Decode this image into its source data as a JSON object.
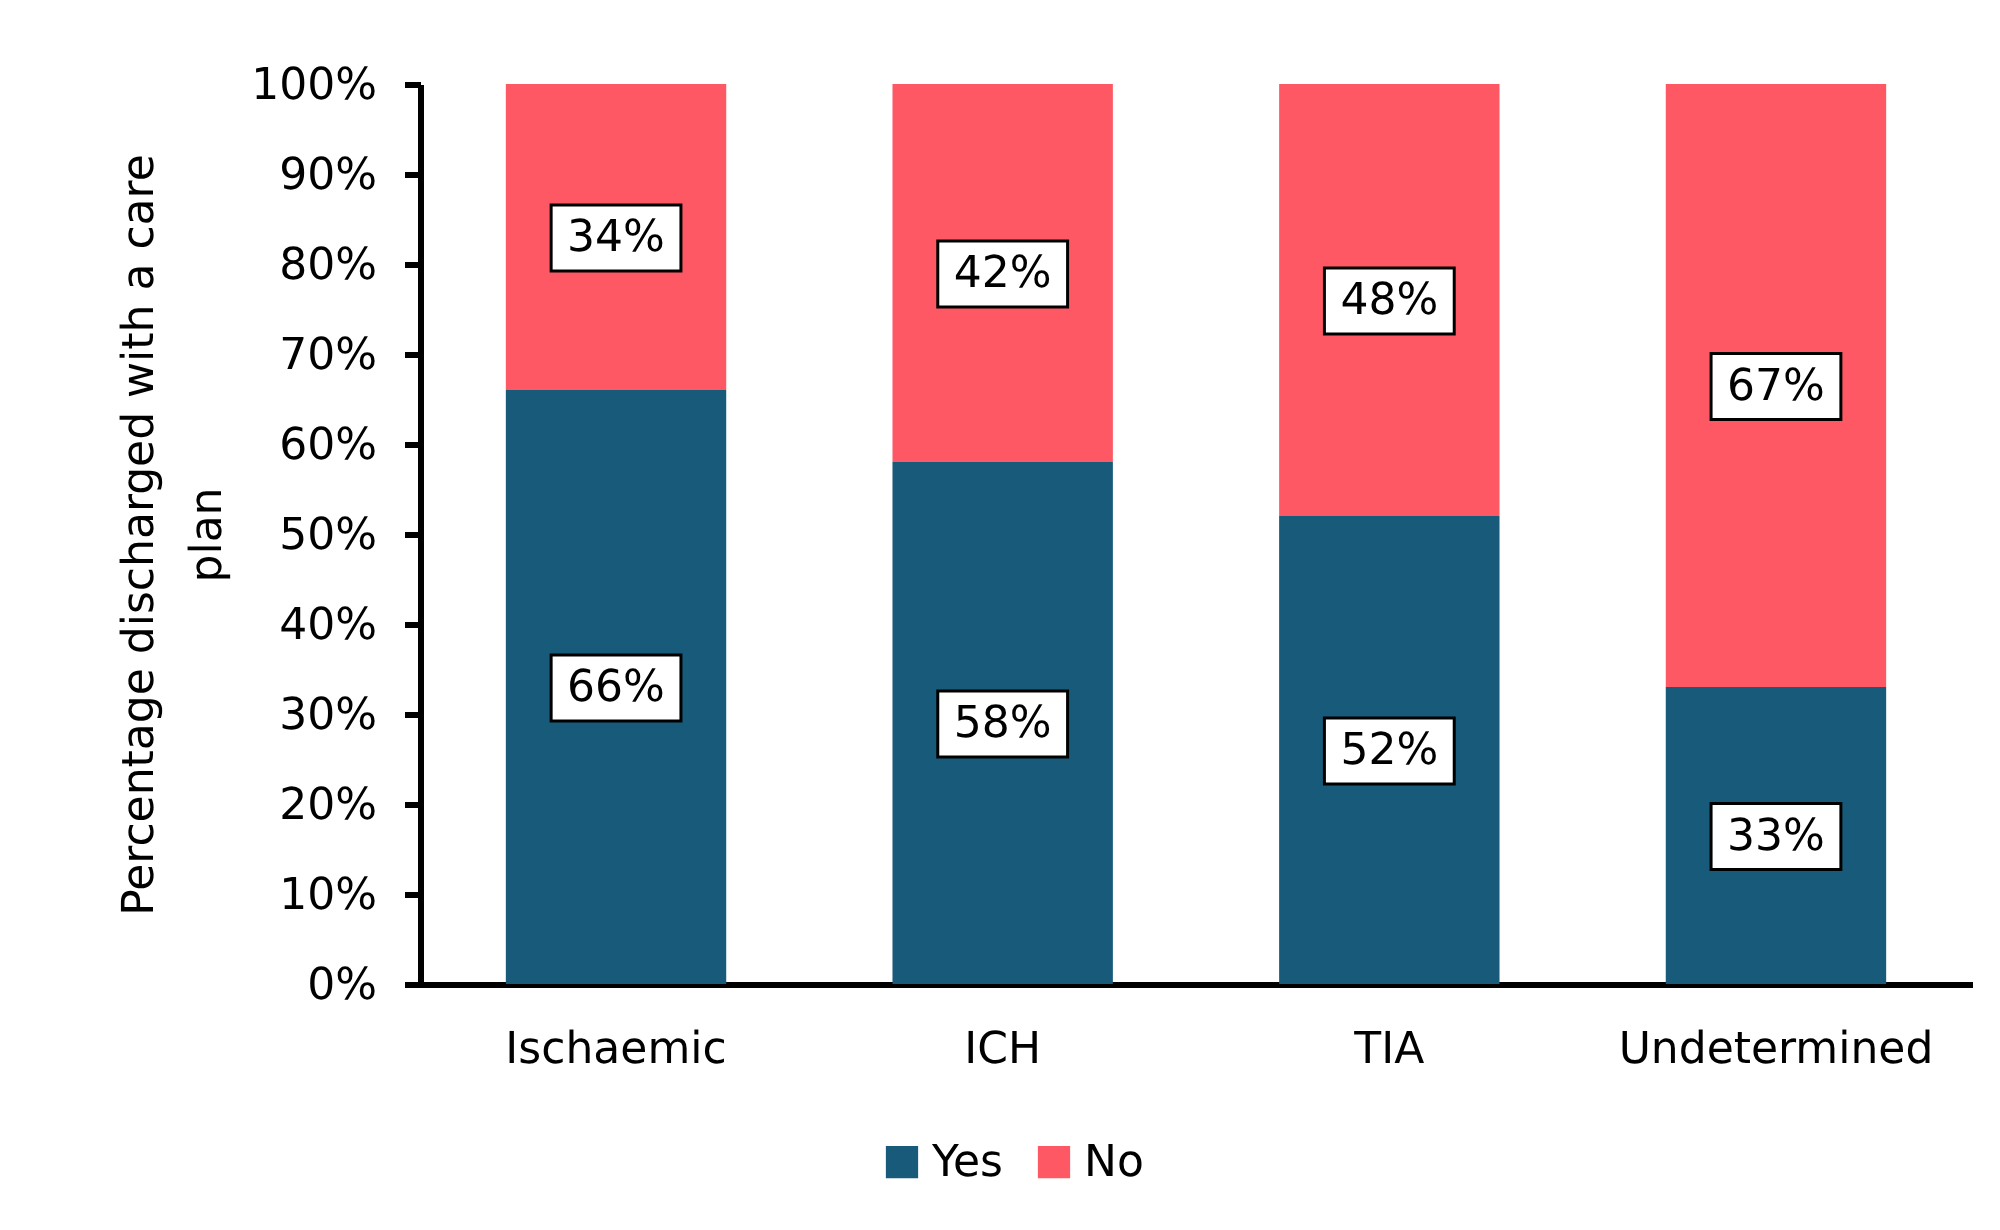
{
  "chart_data": {
    "type": "bar",
    "stacked": true,
    "categories": [
      "Ischaemic",
      "ICH",
      "TIA",
      "Undetermined"
    ],
    "ylabel": "Percentage discharged with a care plan",
    "ylim": [
      0,
      100
    ],
    "yticks": [
      {
        "value": 0,
        "label": "0%"
      },
      {
        "value": 10,
        "label": "10%"
      },
      {
        "value": 20,
        "label": "20%"
      },
      {
        "value": 30,
        "label": "30%"
      },
      {
        "value": 40,
        "label": "40%"
      },
      {
        "value": 50,
        "label": "50%"
      },
      {
        "value": 60,
        "label": "60%"
      },
      {
        "value": 70,
        "label": "70%"
      },
      {
        "value": 80,
        "label": "80%"
      },
      {
        "value": 90,
        "label": "90%"
      },
      {
        "value": 100,
        "label": "100%"
      }
    ],
    "series": [
      {
        "name": "Yes",
        "color": "#175a79",
        "values": [
          66,
          58,
          52,
          33
        ],
        "value_labels": [
          "66%",
          "58%",
          "52%",
          "33%"
        ]
      },
      {
        "name": "No",
        "color": "#fe5865",
        "values": [
          34,
          42,
          48,
          67
        ],
        "value_labels": [
          "34%",
          "42%",
          "48%",
          "67%"
        ]
      }
    ],
    "grid": false,
    "legend": "bottom"
  }
}
